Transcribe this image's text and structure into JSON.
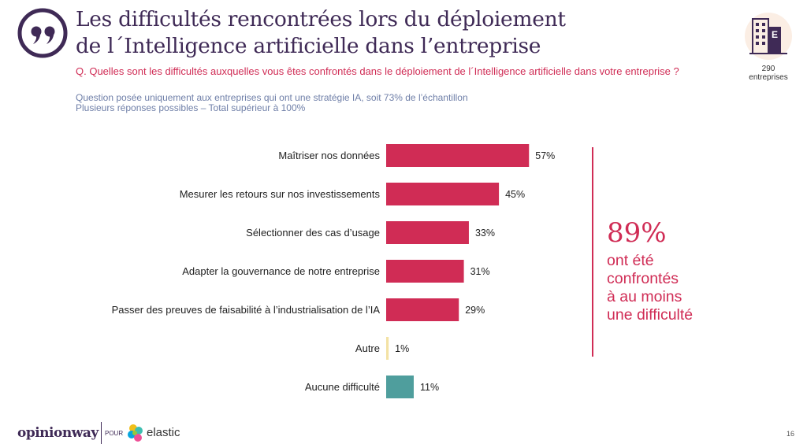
{
  "title_lines": [
    "Les difficultés rencontrées lors du déploiement",
    "de l´Intelligence artificielle dans l’entreprise"
  ],
  "question": "Q. Quelles sont les difficultés auxquelles vous êtes confrontés dans le déploiement de l´Intelligence artificielle dans votre entreprise ?",
  "notes": [
    "Question posée uniquement aux entreprises qui ont une stratégie IA, soit 73% de l’échantillon",
    "Plusieurs réponses possibles – Total supérieur à 100%"
  ],
  "sample": {
    "count": "290",
    "label": "entreprises"
  },
  "callout": {
    "value": "89%",
    "lines": [
      "ont été",
      "confrontés",
      "à au moins",
      "une difficulté"
    ]
  },
  "colors": {
    "primary_bar": "#d02c55",
    "autre_bar": "#f3e2a5",
    "aucune_bar": "#4f9e9d",
    "title": "#3f2a56",
    "accent": "#d02c55",
    "note": "#6f7fa8"
  },
  "chart_data": {
    "type": "bar",
    "orientation": "horizontal",
    "categories": [
      "Maîtriser nos données",
      "Mesurer les retours sur nos investissements",
      "Sélectionner des cas d’usage",
      "Adapter la gouvernance de notre entreprise",
      "Passer des preuves de faisabilité à l’industrialisation de l’IA",
      "Autre",
      "Aucune difficulté"
    ],
    "values": [
      57,
      45,
      33,
      31,
      29,
      1,
      11
    ],
    "value_labels": [
      "57%",
      "45%",
      "33%",
      "31%",
      "29%",
      "1%",
      "11%"
    ],
    "bar_colors": [
      "#d02c55",
      "#d02c55",
      "#d02c55",
      "#d02c55",
      "#d02c55",
      "#f3e2a5",
      "#4f9e9d"
    ],
    "xlim": [
      0,
      100
    ],
    "grid": false,
    "legend": "none"
  },
  "footer": {
    "brand": "opinionway",
    "connector": "POUR",
    "partner": "elastic",
    "page": "16"
  }
}
